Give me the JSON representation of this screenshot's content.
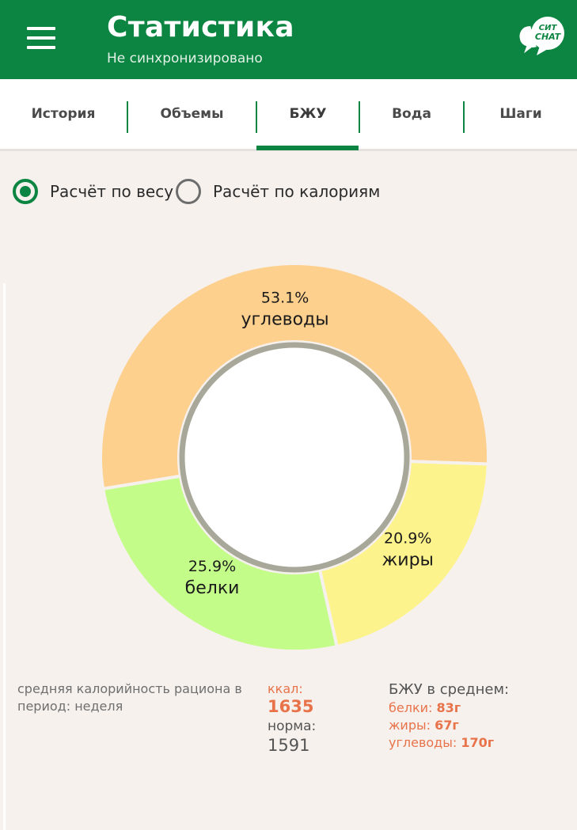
{
  "header": {
    "title": "Статистика",
    "subtitle": "Не синхронизировано",
    "chat_icon_text_top": "СИТ",
    "chat_icon_text_bottom": "CHAT",
    "bg_color": "#0b8541"
  },
  "tabs": [
    {
      "label": "История"
    },
    {
      "label": "Объемы"
    },
    {
      "label": "БЖУ",
      "active": true
    },
    {
      "label": "Вода"
    },
    {
      "label": "Шаги"
    }
  ],
  "radio": {
    "by_weight": {
      "label": "Расчёт по весу",
      "selected": true
    },
    "by_calories": {
      "label": "Расчёт по калориям",
      "selected": false
    }
  },
  "chart_data": {
    "type": "pie",
    "variant": "donut",
    "slices": [
      {
        "label": "углеводы",
        "percent_label": "53.1%",
        "value": 53.1,
        "color": "#fdd08e"
      },
      {
        "label": "белки",
        "percent_label": "25.9%",
        "value": 25.9,
        "color": "#c4fc8a"
      },
      {
        "label": "жиры",
        "percent_label": "20.9%",
        "value": 20.9,
        "color": "#fdf38c"
      }
    ]
  },
  "stats": {
    "avg_label": "средняя калорийность рациона в период: неделя",
    "kcal_label": "ккал:",
    "kcal_value": "1635",
    "norm_label": "норма:",
    "norm_value": "1591",
    "bju_title": "БЖУ в среднем:",
    "proteins_label": "белки:",
    "proteins_value": "83г",
    "fats_label": "жиры:",
    "fats_value": "67г",
    "carbs_label": "углеводы:",
    "carbs_value": "170г",
    "accent_color": "#e8734a"
  }
}
